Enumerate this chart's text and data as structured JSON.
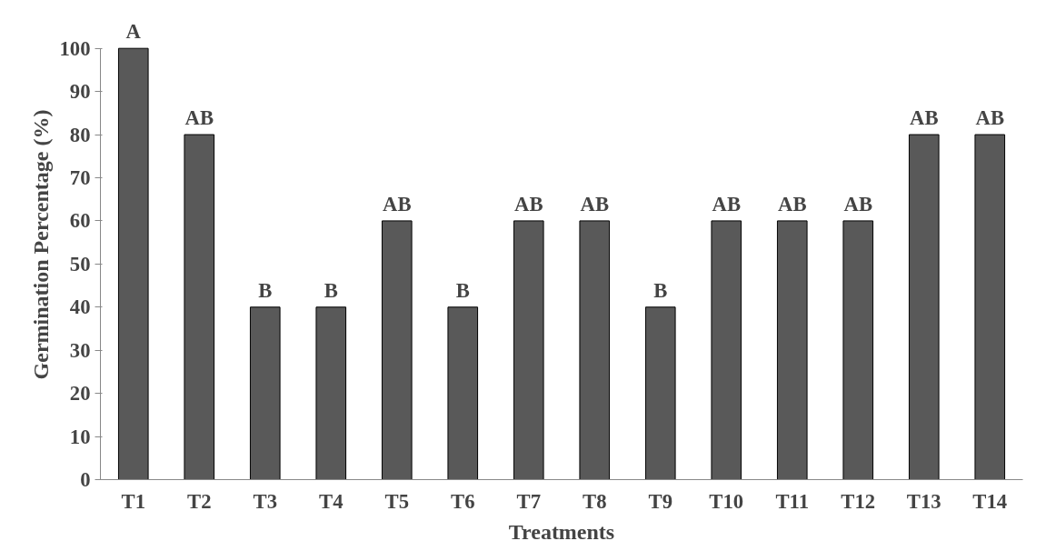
{
  "chart_data": {
    "type": "bar",
    "xlabel": "Treatments",
    "ylabel": "Germination Percentage (%)",
    "categories": [
      "T1",
      "T2",
      "T3",
      "T4",
      "T5",
      "T6",
      "T7",
      "T8",
      "T9",
      "T10",
      "T11",
      "T12",
      "T13",
      "T14"
    ],
    "values": [
      100,
      80,
      40,
      40,
      60,
      40,
      60,
      60,
      40,
      60,
      60,
      60,
      80,
      80
    ],
    "value_labels": [
      "A",
      "AB",
      "B",
      "B",
      "AB",
      "B",
      "AB",
      "AB",
      "B",
      "AB",
      "AB",
      "AB",
      "AB",
      "AB"
    ],
    "color": "#595959",
    "ylim": [
      0,
      100
    ],
    "yticks": [
      0,
      10,
      20,
      30,
      40,
      50,
      60,
      70,
      80,
      90,
      100
    ],
    "grid": false
  }
}
